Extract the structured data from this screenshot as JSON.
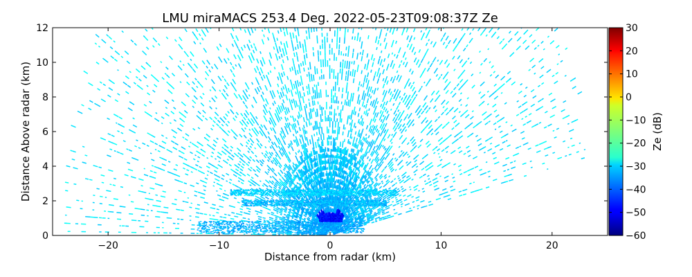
{
  "chart_data": {
    "type": "heatmap",
    "title": "LMU miraMACS 253.4 Deg. 2022-05-23T09:08:37Z  Ze",
    "xlabel": "Distance from radar (km)",
    "ylabel": "Distance Above radar  (km)",
    "xlim": [
      -25,
      25
    ],
    "ylim": [
      0,
      12
    ],
    "x_ticks": [
      -20,
      -10,
      0,
      10,
      20
    ],
    "x_tick_labels": [
      "−20",
      "−10",
      "0",
      "10",
      "20"
    ],
    "y_ticks": [
      0,
      2,
      4,
      6,
      8,
      10,
      12
    ],
    "y_tick_labels": [
      "0",
      "2",
      "4",
      "6",
      "8",
      "10",
      "12"
    ],
    "colorbar": {
      "label": "Ze (dB)",
      "range": [
        -60,
        30
      ],
      "colormap": "jet",
      "ticks": [
        30,
        20,
        10,
        0,
        -10,
        -20,
        -30,
        -40,
        -50,
        -60
      ],
      "tick_labels": [
        "30",
        "20",
        "10",
        "0",
        "−10",
        "−20",
        "−30",
        "−40",
        "−50",
        "−60"
      ]
    },
    "scan": {
      "origin": [
        0,
        0
      ],
      "azimuth_deg": 253.4,
      "max_range_km": 23.9,
      "sector_left_edge_deg": 180,
      "sector_right_edge_deg": 10.5
    },
    "features": [
      {
        "name": "layer",
        "y_km": 2.5,
        "x_range_km": [
          -9,
          6
        ],
        "ze_db": -30
      },
      {
        "name": "layer",
        "y_km": 1.9,
        "x_range_km": [
          -8,
          5
        ],
        "ze_db": -32
      },
      {
        "name": "near-surface",
        "y_km": 0.5,
        "x_range_km": [
          -12,
          3
        ],
        "ze_db": -33
      },
      {
        "name": "core",
        "y_km": 1.0,
        "x_range_km": [
          -1,
          1
        ],
        "ze_db": -48
      }
    ]
  }
}
